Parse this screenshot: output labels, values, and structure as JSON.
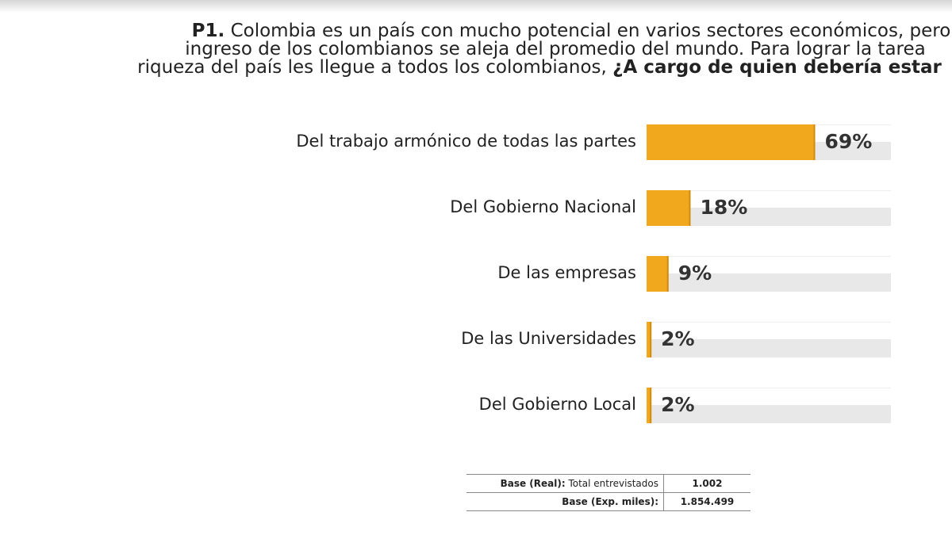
{
  "question": {
    "prefix": "P1.",
    "line1": " Colombia es un país con mucho potencial en varios sectores económicos,  pero",
    "line2": "ingreso de los colombianos se aleja del promedio del  mundo. Para lograr la tarea",
    "line3_plain": "riqueza del país les llegue a  todos los colombianos, ",
    "line3_bold": "¿A cargo de quien debería estar"
  },
  "chart_data": {
    "type": "bar",
    "orientation": "horizontal",
    "categories": [
      "Del trabajo armónico de todas las partes",
      "Del Gobierno Nacional",
      "De las empresas",
      "De las Universidades",
      "Del Gobierno Local"
    ],
    "values": [
      69,
      18,
      9,
      2,
      2
    ],
    "value_labels": [
      "69%",
      "18%",
      "9%",
      "2%",
      "2%"
    ],
    "xlim": [
      0,
      100
    ],
    "grid": false,
    "legend": "none"
  },
  "colors": {
    "bar": "#f2a81d",
    "bar_shadow": "#d08c12",
    "track": "#e8e8e8"
  },
  "base": {
    "row1_label_bold": "Base (Real):",
    "row1_label": " Total entrevistados",
    "row1_value": "1.002",
    "row2_label_bold": "Base (Exp. miles):",
    "row2_value": "1.854.499"
  }
}
